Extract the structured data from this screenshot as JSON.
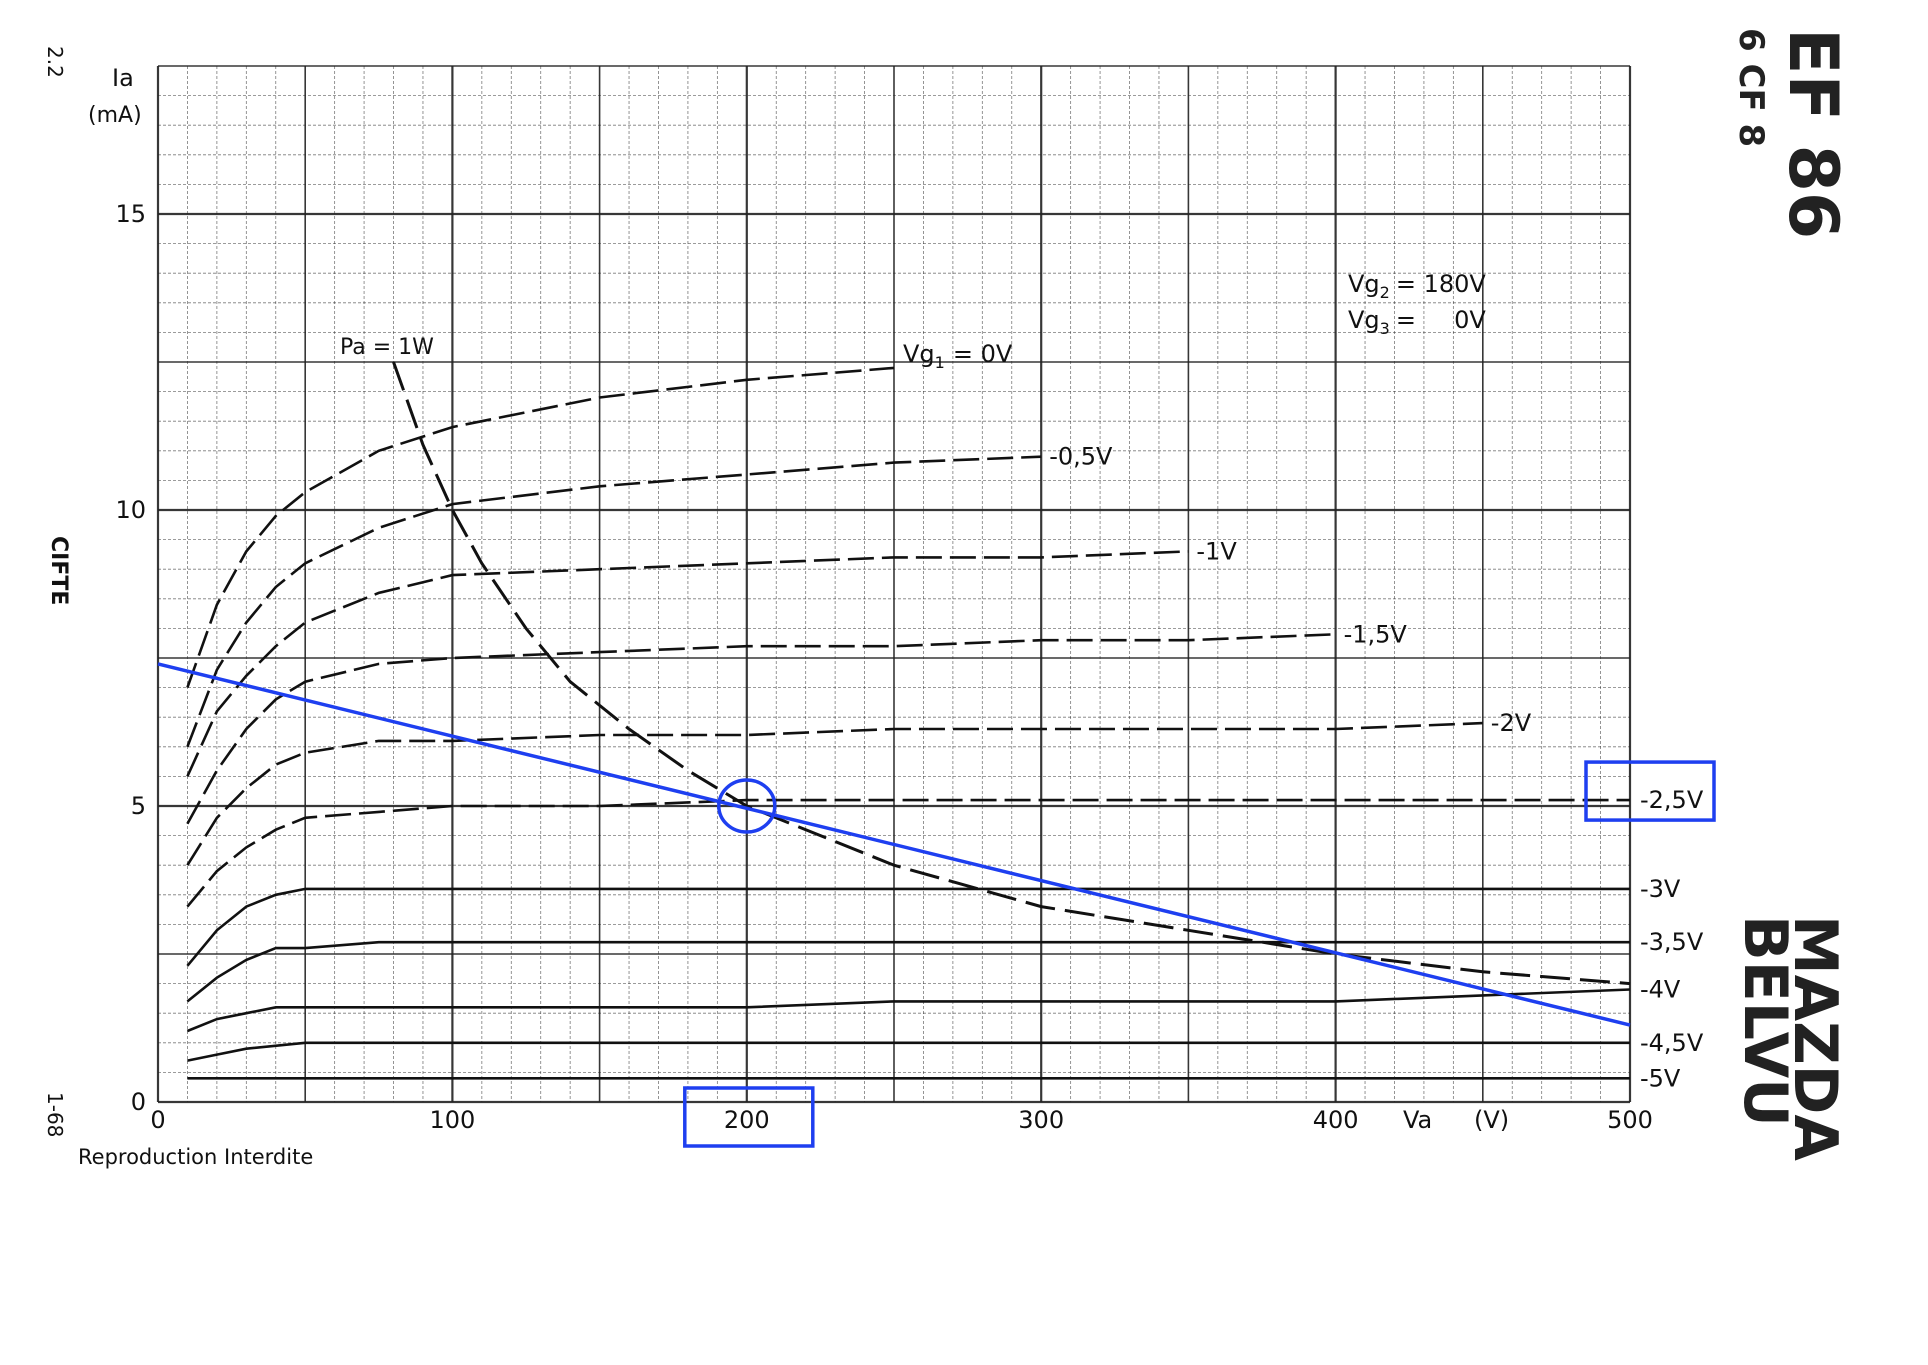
{
  "page": {
    "page_ref": "2.2",
    "side_code": "1-68",
    "maker_side": "CIFTE",
    "tube_name": "EF 86",
    "tube_alt": "6 CF 8",
    "brand_line1": "MAZDA",
    "brand_line2": "BELVU",
    "footer": "Reproduction Interdite"
  },
  "chart_data": {
    "type": "line",
    "title": "",
    "ylabel_main": "Ia",
    "ylabel_unit": "(mA)",
    "xlabel_main": "Va",
    "xlabel_unit": "(V)",
    "xlim": [
      0,
      500
    ],
    "ylim": [
      0,
      17.5
    ],
    "x_ticks": [
      "0",
      "100",
      "200",
      "300",
      "400",
      "500"
    ],
    "y_ticks": [
      "0",
      "5",
      "10",
      "15"
    ],
    "grid": true,
    "conditions": {
      "vg2_label": "Vg",
      "vg2_sub": "2",
      "vg2_value": "= 180V",
      "vg3_label": "Vg",
      "vg3_sub": "3",
      "vg3_value": "=     0V"
    },
    "series": [
      {
        "name": "Vg1 = 0V",
        "label_prefix": "Vg",
        "label_sub": "1",
        "label_value": "= 0V",
        "points": [
          [
            10,
            7.0
          ],
          [
            20,
            8.4
          ],
          [
            30,
            9.3
          ],
          [
            40,
            9.9
          ],
          [
            50,
            10.3
          ],
          [
            75,
            11.0
          ],
          [
            100,
            11.4
          ],
          [
            150,
            11.9
          ],
          [
            200,
            12.2
          ],
          [
            250,
            12.4
          ]
        ]
      },
      {
        "name": "-0,5V",
        "label": "-0,5V",
        "points": [
          [
            10,
            6.0
          ],
          [
            20,
            7.3
          ],
          [
            30,
            8.1
          ],
          [
            40,
            8.7
          ],
          [
            50,
            9.1
          ],
          [
            75,
            9.7
          ],
          [
            100,
            10.1
          ],
          [
            150,
            10.4
          ],
          [
            200,
            10.6
          ],
          [
            250,
            10.8
          ],
          [
            300,
            10.9
          ]
        ]
      },
      {
        "name": "-1V",
        "label": "-1V",
        "points": [
          [
            10,
            5.5
          ],
          [
            20,
            6.6
          ],
          [
            30,
            7.2
          ],
          [
            40,
            7.7
          ],
          [
            50,
            8.1
          ],
          [
            75,
            8.6
          ],
          [
            100,
            8.9
          ],
          [
            150,
            9.0
          ],
          [
            200,
            9.1
          ],
          [
            250,
            9.2
          ],
          [
            300,
            9.2
          ],
          [
            350,
            9.3
          ],
          [
            350,
            9.3
          ]
        ]
      },
      {
        "name": "-1,5V",
        "label": "-1,5V",
        "points": [
          [
            10,
            4.7
          ],
          [
            20,
            5.6
          ],
          [
            30,
            6.3
          ],
          [
            40,
            6.8
          ],
          [
            50,
            7.1
          ],
          [
            75,
            7.4
          ],
          [
            100,
            7.5
          ],
          [
            150,
            7.6
          ],
          [
            200,
            7.7
          ],
          [
            250,
            7.7
          ],
          [
            300,
            7.8
          ],
          [
            350,
            7.8
          ],
          [
            400,
            7.9
          ]
        ]
      },
      {
        "name": "-2V",
        "label": "-2V",
        "points": [
          [
            10,
            4.0
          ],
          [
            20,
            4.8
          ],
          [
            30,
            5.3
          ],
          [
            40,
            5.7
          ],
          [
            50,
            5.9
          ],
          [
            75,
            6.1
          ],
          [
            100,
            6.1
          ],
          [
            150,
            6.2
          ],
          [
            200,
            6.2
          ],
          [
            250,
            6.3
          ],
          [
            300,
            6.3
          ],
          [
            350,
            6.3
          ],
          [
            400,
            6.3
          ],
          [
            450,
            6.4
          ]
        ]
      },
      {
        "name": "-2,5V",
        "label": "-2,5V",
        "points": [
          [
            10,
            3.3
          ],
          [
            20,
            3.9
          ],
          [
            30,
            4.3
          ],
          [
            40,
            4.6
          ],
          [
            50,
            4.8
          ],
          [
            75,
            4.9
          ],
          [
            100,
            5.0
          ],
          [
            150,
            5.0
          ],
          [
            200,
            5.1
          ],
          [
            250,
            5.1
          ],
          [
            300,
            5.1
          ],
          [
            350,
            5.1
          ],
          [
            400,
            5.1
          ],
          [
            450,
            5.1
          ],
          [
            500,
            5.1
          ]
        ]
      },
      {
        "name": "-3V",
        "label": "-3V",
        "points": [
          [
            10,
            2.3
          ],
          [
            20,
            2.9
          ],
          [
            30,
            3.3
          ],
          [
            40,
            3.5
          ],
          [
            50,
            3.6
          ],
          [
            75,
            3.6
          ],
          [
            100,
            3.6
          ],
          [
            150,
            3.6
          ],
          [
            200,
            3.6
          ],
          [
            250,
            3.6
          ],
          [
            300,
            3.6
          ],
          [
            350,
            3.6
          ],
          [
            400,
            3.6
          ],
          [
            450,
            3.6
          ],
          [
            500,
            3.6
          ]
        ]
      },
      {
        "name": "-3,5V",
        "label": "-3,5V",
        "points": [
          [
            10,
            1.7
          ],
          [
            20,
            2.1
          ],
          [
            30,
            2.4
          ],
          [
            40,
            2.6
          ],
          [
            50,
            2.6
          ],
          [
            75,
            2.7
          ],
          [
            100,
            2.7
          ],
          [
            150,
            2.7
          ],
          [
            200,
            2.7
          ],
          [
            250,
            2.7
          ],
          [
            300,
            2.7
          ],
          [
            350,
            2.7
          ],
          [
            400,
            2.7
          ],
          [
            450,
            2.7
          ],
          [
            500,
            2.7
          ]
        ]
      },
      {
        "name": "-4V",
        "label": "-4V",
        "points": [
          [
            10,
            1.2
          ],
          [
            20,
            1.4
          ],
          [
            30,
            1.5
          ],
          [
            40,
            1.6
          ],
          [
            50,
            1.6
          ],
          [
            75,
            1.6
          ],
          [
            100,
            1.6
          ],
          [
            150,
            1.6
          ],
          [
            200,
            1.6
          ],
          [
            250,
            1.7
          ],
          [
            300,
            1.7
          ],
          [
            350,
            1.7
          ],
          [
            400,
            1.7
          ],
          [
            450,
            1.8
          ],
          [
            500,
            1.9
          ]
        ]
      },
      {
        "name": "-4,5V",
        "label": "-4,5V",
        "points": [
          [
            10,
            0.7
          ],
          [
            20,
            0.8
          ],
          [
            30,
            0.9
          ],
          [
            50,
            1.0
          ],
          [
            100,
            1.0
          ],
          [
            150,
            1.0
          ],
          [
            200,
            1.0
          ],
          [
            250,
            1.0
          ],
          [
            300,
            1.0
          ],
          [
            350,
            1.0
          ],
          [
            400,
            1.0
          ],
          [
            450,
            1.0
          ],
          [
            500,
            1.0
          ]
        ]
      },
      {
        "name": "-5V",
        "label": "-5V",
        "points": [
          [
            10,
            0.4
          ],
          [
            20,
            0.4
          ],
          [
            50,
            0.4
          ],
          [
            100,
            0.4
          ],
          [
            200,
            0.4
          ],
          [
            300,
            0.4
          ],
          [
            400,
            0.4
          ],
          [
            500,
            0.4
          ]
        ]
      }
    ],
    "power_limit": {
      "label": "Pa = 1W",
      "points": [
        [
          80,
          12.5
        ],
        [
          90,
          11.1
        ],
        [
          100,
          10.0
        ],
        [
          110,
          9.1
        ],
        [
          125,
          8.0
        ],
        [
          140,
          7.1
        ],
        [
          160,
          6.3
        ],
        [
          180,
          5.6
        ],
        [
          200,
          5.0
        ],
        [
          250,
          4.0
        ],
        [
          300,
          3.3
        ],
        [
          350,
          2.9
        ],
        [
          400,
          2.5
        ],
        [
          450,
          2.2
        ],
        [
          500,
          2.0
        ]
      ]
    },
    "load_line": {
      "color": "#1e3ff0",
      "points": [
        [
          0,
          7.4
        ],
        [
          500,
          1.3
        ]
      ]
    },
    "operating_point": {
      "x": 200,
      "y": 5.0,
      "color": "#1e3ff0"
    },
    "highlights": {
      "x_tick_highlight": "200",
      "series_highlight": "-2,5V",
      "color": "#1e3ff0"
    }
  }
}
